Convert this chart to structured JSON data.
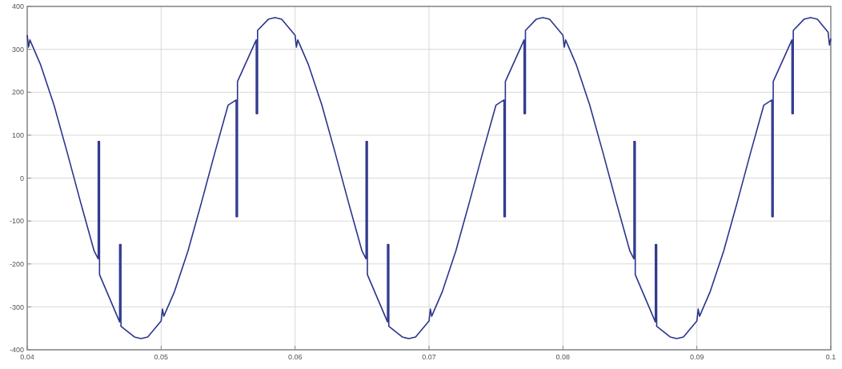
{
  "chart_data": {
    "type": "line",
    "xlim": [
      0.04,
      0.1
    ],
    "ylim": [
      -400,
      400
    ],
    "xticks": [
      0.04,
      0.05,
      0.06,
      0.07,
      0.08,
      0.09,
      0.1
    ],
    "yticks": [
      -400,
      -300,
      -200,
      -100,
      0,
      100,
      200,
      300,
      400
    ],
    "grid": true,
    "marker": "none",
    "line_style": "solid",
    "series": [
      {
        "color": "#2a358c",
        "x": [
          0.04,
          0.0401,
          0.0402,
          0.041,
          0.042,
          0.043,
          0.044,
          0.045,
          0.0453,
          0.0453,
          0.0454,
          0.0454,
          0.0469,
          0.0469,
          0.047,
          0.047,
          0.048,
          0.0485,
          0.049,
          0.05,
          0.0501,
          0.0502,
          0.051,
          0.052,
          0.053,
          0.054,
          0.055,
          0.0556,
          0.0556,
          0.0557,
          0.0557,
          0.0571,
          0.0571,
          0.0572,
          0.0572,
          0.058,
          0.0585,
          0.059,
          0.06,
          0.0601,
          0.0602,
          0.061,
          0.062,
          0.063,
          0.064,
          0.065,
          0.0653,
          0.0653,
          0.0654,
          0.0654,
          0.0669,
          0.0669,
          0.067,
          0.067,
          0.068,
          0.0685,
          0.069,
          0.07,
          0.0701,
          0.0702,
          0.071,
          0.072,
          0.073,
          0.074,
          0.075,
          0.0756,
          0.0756,
          0.0757,
          0.0757,
          0.0771,
          0.0771,
          0.0772,
          0.0772,
          0.078,
          0.0785,
          0.079,
          0.08,
          0.0801,
          0.0802,
          0.081,
          0.082,
          0.083,
          0.084,
          0.085,
          0.0853,
          0.0853,
          0.0854,
          0.0854,
          0.0869,
          0.0869,
          0.087,
          0.087,
          0.088,
          0.0885,
          0.089,
          0.09,
          0.0901,
          0.0902,
          0.091,
          0.092,
          0.093,
          0.094,
          0.095,
          0.0956,
          0.0956,
          0.0957,
          0.0957,
          0.0971,
          0.0971,
          0.0972,
          0.0972,
          0.098,
          0.0985,
          0.099,
          0.0998,
          0.0999,
          0.1
        ],
        "values": [
          333,
          305,
          322,
          264,
          170,
          58,
          -58,
          -170,
          -188,
          85,
          85,
          -225,
          -335,
          -155,
          -155,
          -345,
          -370,
          -374,
          -370,
          -333,
          -305,
          -322,
          -264,
          -170,
          -58,
          58,
          170,
          182,
          -90,
          -90,
          225,
          322,
          150,
          150,
          344,
          370,
          374,
          370,
          333,
          305,
          322,
          264,
          170,
          58,
          -58,
          -170,
          -188,
          85,
          85,
          -225,
          -335,
          -155,
          -155,
          -345,
          -370,
          -374,
          -370,
          -333,
          -305,
          -322,
          -264,
          -170,
          -58,
          58,
          170,
          182,
          -90,
          -90,
          225,
          322,
          150,
          150,
          344,
          370,
          374,
          370,
          333,
          305,
          322,
          264,
          170,
          58,
          -58,
          -170,
          -188,
          85,
          85,
          -225,
          -335,
          -155,
          -155,
          -345,
          -370,
          -374,
          -370,
          -333,
          -305,
          -322,
          -264,
          -170,
          -58,
          58,
          170,
          182,
          -90,
          -90,
          225,
          322,
          150,
          150,
          344,
          370,
          374,
          370,
          340,
          310,
          325
        ]
      }
    ]
  }
}
